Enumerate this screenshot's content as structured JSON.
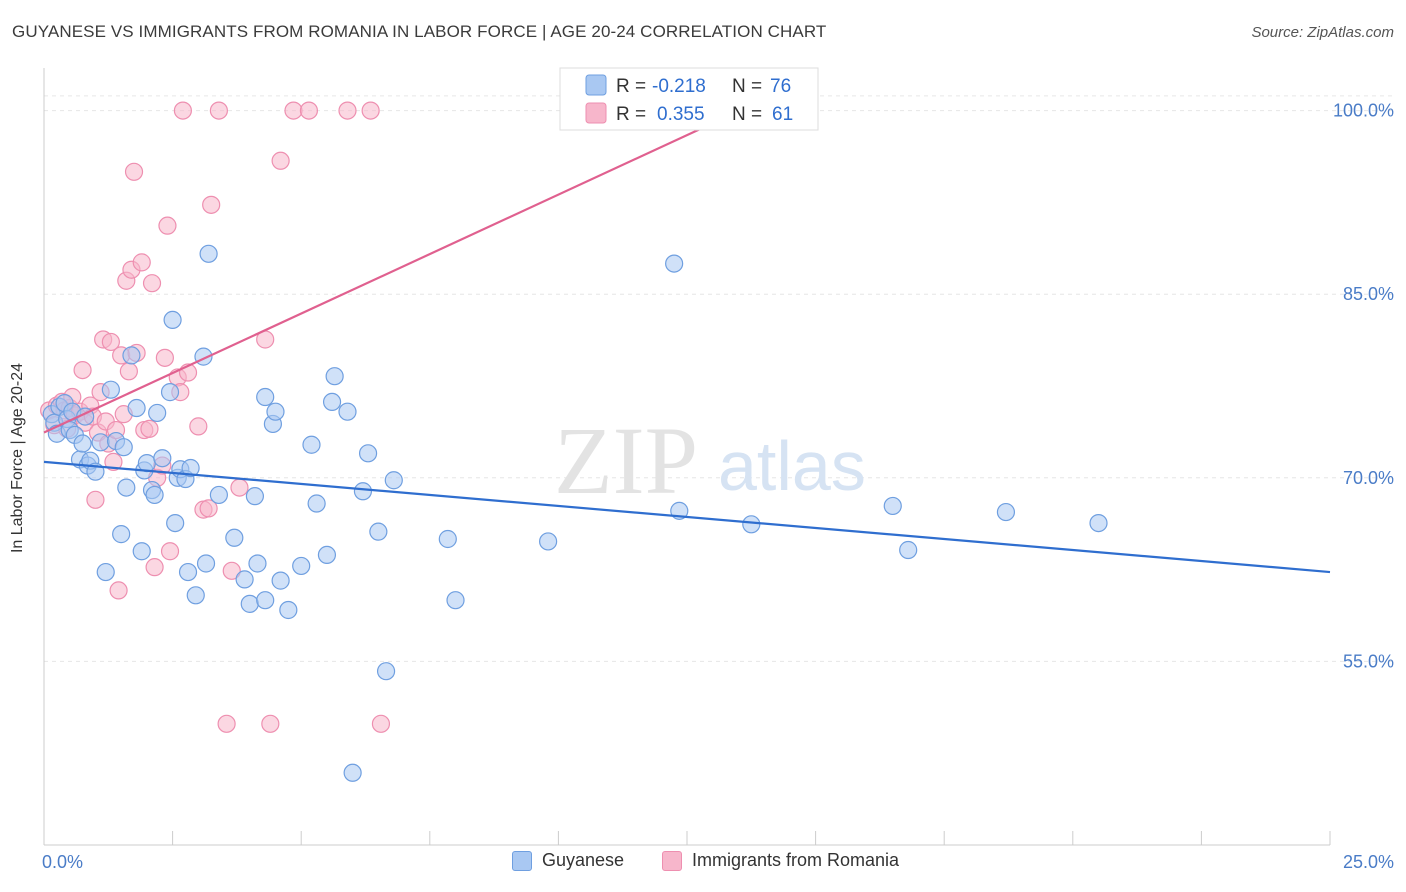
{
  "header": {
    "title": "GUYANESE VS IMMIGRANTS FROM ROMANIA IN LABOR FORCE | AGE 20-24 CORRELATION CHART",
    "source": "Source: ZipAtlas.com"
  },
  "watermark": {
    "zip": "ZIP",
    "atlas": "atlas"
  },
  "legend": {
    "rows": [
      {
        "r_label": "R =",
        "r_value": "-0.218",
        "n_label": "N =",
        "n_value": "76",
        "color": "#a9c8f2"
      },
      {
        "r_label": "R =",
        "r_value": "0.355",
        "n_label": "N =",
        "n_value": "61",
        "color": "#f7b6cb"
      }
    ]
  },
  "chart_data": {
    "type": "scatter",
    "title": "GUYANESE VS IMMIGRANTS FROM ROMANIA IN LABOR FORCE | AGE 20-24 CORRELATION CHART",
    "ylabel": "In Labor Force | Age 20-24",
    "xlim": [
      0,
      25
    ],
    "ylim": [
      40,
      102.5
    ],
    "x_tick_labels": [
      "0.0%",
      "25.0%"
    ],
    "y_ticks": [
      55,
      70,
      85,
      100
    ],
    "y_tick_labels": [
      "55.0%",
      "70.0%",
      "85.0%",
      "100.0%"
    ],
    "grid": true,
    "legend_position": "top-center",
    "series": [
      {
        "name": "Guyanese",
        "color": "#6f9fe0",
        "fill": "#a9c8f2",
        "trend": {
          "x": [
            0,
            25
          ],
          "y": [
            71.3,
            62.3
          ],
          "color": "#2f6ecf"
        },
        "points": [
          [
            0.15,
            75.2
          ],
          [
            0.2,
            74.5
          ],
          [
            0.25,
            73.6
          ],
          [
            0.3,
            75.8
          ],
          [
            0.4,
            76.1
          ],
          [
            0.45,
            74.8
          ],
          [
            0.5,
            73.9
          ],
          [
            0.55,
            75.4
          ],
          [
            0.6,
            73.5
          ],
          [
            0.7,
            71.5
          ],
          [
            0.75,
            72.8
          ],
          [
            0.8,
            75.0
          ],
          [
            0.85,
            71.0
          ],
          [
            0.9,
            71.4
          ],
          [
            1.0,
            70.5
          ],
          [
            1.1,
            72.9
          ],
          [
            1.2,
            62.3
          ],
          [
            1.3,
            77.2
          ],
          [
            1.4,
            73.0
          ],
          [
            1.5,
            65.4
          ],
          [
            1.55,
            72.5
          ],
          [
            1.6,
            69.2
          ],
          [
            1.7,
            80.0
          ],
          [
            1.8,
            75.7
          ],
          [
            1.9,
            64.0
          ],
          [
            1.95,
            70.6
          ],
          [
            2.0,
            71.2
          ],
          [
            2.1,
            69.0
          ],
          [
            2.15,
            68.6
          ],
          [
            2.2,
            75.3
          ],
          [
            2.3,
            71.6
          ],
          [
            2.45,
            77.0
          ],
          [
            2.5,
            82.9
          ],
          [
            2.55,
            66.3
          ],
          [
            2.6,
            70.0
          ],
          [
            2.65,
            70.7
          ],
          [
            2.75,
            69.9
          ],
          [
            2.8,
            62.3
          ],
          [
            2.85,
            70.8
          ],
          [
            2.95,
            60.4
          ],
          [
            3.1,
            79.9
          ],
          [
            3.15,
            63.0
          ],
          [
            3.2,
            88.3
          ],
          [
            3.4,
            68.6
          ],
          [
            3.7,
            65.1
          ],
          [
            3.9,
            61.7
          ],
          [
            4.0,
            59.7
          ],
          [
            4.1,
            68.5
          ],
          [
            4.15,
            63.0
          ],
          [
            4.3,
            60.0
          ],
          [
            4.3,
            76.6
          ],
          [
            4.45,
            74.4
          ],
          [
            4.5,
            75.4
          ],
          [
            4.6,
            61.6
          ],
          [
            4.75,
            59.2
          ],
          [
            5.0,
            62.8
          ],
          [
            5.2,
            72.7
          ],
          [
            5.3,
            67.9
          ],
          [
            5.5,
            63.7
          ],
          [
            5.6,
            76.2
          ],
          [
            5.65,
            78.3
          ],
          [
            5.9,
            75.4
          ],
          [
            6.2,
            68.9
          ],
          [
            6.3,
            72.0
          ],
          [
            6.5,
            65.6
          ],
          [
            6.65,
            54.2
          ],
          [
            6.8,
            69.8
          ],
          [
            7.85,
            65.0
          ],
          [
            8.0,
            60.0
          ],
          [
            9.8,
            64.8
          ],
          [
            6.0,
            45.9
          ],
          [
            12.25,
            87.5
          ],
          [
            12.35,
            67.3
          ],
          [
            13.75,
            66.2
          ],
          [
            16.5,
            67.7
          ],
          [
            16.8,
            64.1
          ],
          [
            18.7,
            67.2
          ],
          [
            20.5,
            66.3
          ]
        ]
      },
      {
        "name": "Immigrants from Romania",
        "color": "#ee8fb0",
        "fill": "#f7b6cb",
        "trend": {
          "x": [
            0,
            14.2
          ],
          "y": [
            73.7,
            101.3
          ],
          "color": "#e0608f"
        },
        "points": [
          [
            0.1,
            75.5
          ],
          [
            0.2,
            74.3
          ],
          [
            0.25,
            75.9
          ],
          [
            0.35,
            76.2
          ],
          [
            0.4,
            75.5
          ],
          [
            0.45,
            74.0
          ],
          [
            0.5,
            75.7
          ],
          [
            0.55,
            76.6
          ],
          [
            0.6,
            75.1
          ],
          [
            0.7,
            75.4
          ],
          [
            0.75,
            78.8
          ],
          [
            0.8,
            74.5
          ],
          [
            0.9,
            75.9
          ],
          [
            0.95,
            75.0
          ],
          [
            1.0,
            68.2
          ],
          [
            1.05,
            73.7
          ],
          [
            1.1,
            77.0
          ],
          [
            1.15,
            81.3
          ],
          [
            1.2,
            74.6
          ],
          [
            1.25,
            72.8
          ],
          [
            1.3,
            81.1
          ],
          [
            1.35,
            71.3
          ],
          [
            1.4,
            73.9
          ],
          [
            1.45,
            60.8
          ],
          [
            1.5,
            80.0
          ],
          [
            1.55,
            75.2
          ],
          [
            1.6,
            86.1
          ],
          [
            1.65,
            78.7
          ],
          [
            1.7,
            87.0
          ],
          [
            1.75,
            95.0
          ],
          [
            1.8,
            80.2
          ],
          [
            1.9,
            87.6
          ],
          [
            1.95,
            73.9
          ],
          [
            2.05,
            74.0
          ],
          [
            2.1,
            85.9
          ],
          [
            2.15,
            62.7
          ],
          [
            2.2,
            70.0
          ],
          [
            2.3,
            71.0
          ],
          [
            2.35,
            79.8
          ],
          [
            2.4,
            90.6
          ],
          [
            2.45,
            64.0
          ],
          [
            2.6,
            78.2
          ],
          [
            2.65,
            77.0
          ],
          [
            2.7,
            100.0
          ],
          [
            2.8,
            78.6
          ],
          [
            3.0,
            74.2
          ],
          [
            3.1,
            67.4
          ],
          [
            3.2,
            67.5
          ],
          [
            3.25,
            92.3
          ],
          [
            3.4,
            100.0
          ],
          [
            3.55,
            49.9
          ],
          [
            3.65,
            62.4
          ],
          [
            3.8,
            69.2
          ],
          [
            4.3,
            81.3
          ],
          [
            4.4,
            49.9
          ],
          [
            4.6,
            95.9
          ],
          [
            4.85,
            100.0
          ],
          [
            5.15,
            100.0
          ],
          [
            5.9,
            100.0
          ],
          [
            6.55,
            49.9
          ],
          [
            6.35,
            100.0
          ]
        ]
      }
    ]
  }
}
